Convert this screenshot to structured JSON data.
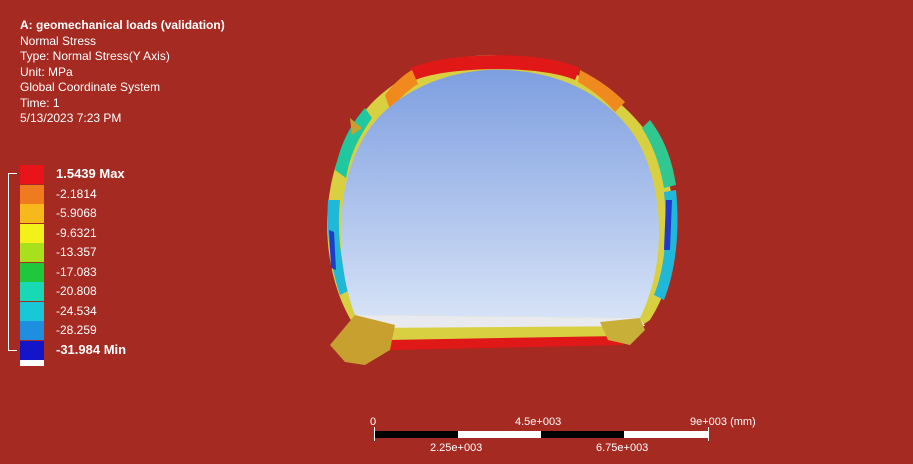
{
  "info": {
    "title": "A: geomechanical loads (validation)",
    "result": "Normal Stress",
    "type": "Type: Normal Stress(Y Axis)",
    "unit": "Unit: MPa",
    "coord": "Global Coordinate System",
    "time": "Time: 1",
    "timestamp": "5/13/2023 7:23 PM"
  },
  "legend": {
    "entries": [
      {
        "label": "1.5439 Max",
        "color": "#e8141a"
      },
      {
        "label": "-2.1814",
        "color": "#f07a1e"
      },
      {
        "label": "-5.9068",
        "color": "#f7b81c"
      },
      {
        "label": "-9.6321",
        "color": "#f2f21a"
      },
      {
        "label": "-13.357",
        "color": "#a8e01e"
      },
      {
        "label": "-17.083",
        "color": "#1ec83a"
      },
      {
        "label": "-20.808",
        "color": "#19d8b4"
      },
      {
        "label": "-24.534",
        "color": "#19c8d8"
      },
      {
        "label": "-28.259",
        "color": "#1e8fe0"
      },
      {
        "label": "-31.984 Min",
        "color": "#1414c8"
      }
    ]
  },
  "scale_bar": {
    "top_labels": [
      "0",
      "4.5e+003",
      "9e+003 (mm)"
    ],
    "bottom_labels": [
      "2.25e+003",
      "6.75e+003"
    ]
  },
  "colors": {
    "background": "#a52a22",
    "tunnel_interior": "#8fb0e8"
  }
}
